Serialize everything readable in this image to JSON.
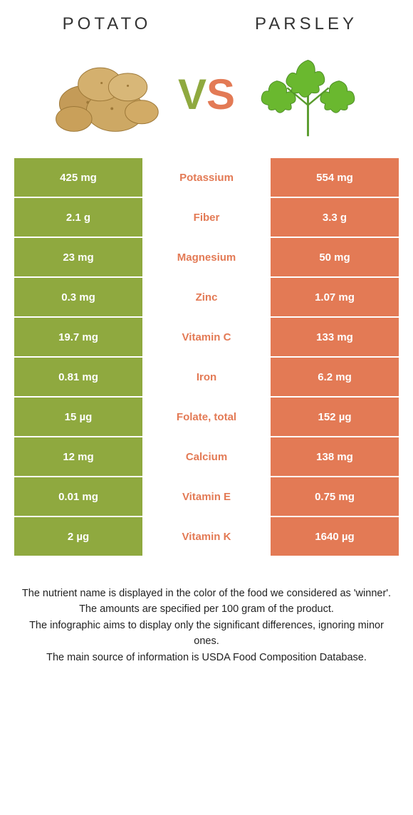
{
  "colors": {
    "left": "#8fa93f",
    "right": "#e37a55",
    "vs_v": "#8fa93f",
    "vs_s": "#e37a55",
    "mid_bg": "#ffffff",
    "mid_text_default": "#e37a55",
    "row_border": "#ffffff"
  },
  "fonts": {
    "title_size": 24,
    "title_spacing": 5,
    "cell_size": 15,
    "vs_size": 60,
    "footer_size": 14.5
  },
  "header": {
    "left": "Potato",
    "right": "Parsley"
  },
  "vs": {
    "v": "V",
    "s": "S"
  },
  "rows": [
    {
      "left": "425 mg",
      "label": "Potassium",
      "right": "554 mg",
      "winner": "right"
    },
    {
      "left": "2.1 g",
      "label": "Fiber",
      "right": "3.3 g",
      "winner": "right"
    },
    {
      "left": "23 mg",
      "label": "Magnesium",
      "right": "50 mg",
      "winner": "right"
    },
    {
      "left": "0.3 mg",
      "label": "Zinc",
      "right": "1.07 mg",
      "winner": "right"
    },
    {
      "left": "19.7 mg",
      "label": "Vitamin C",
      "right": "133 mg",
      "winner": "right"
    },
    {
      "left": "0.81 mg",
      "label": "Iron",
      "right": "6.2 mg",
      "winner": "right"
    },
    {
      "left": "15 µg",
      "label": "Folate, total",
      "right": "152 µg",
      "winner": "right"
    },
    {
      "left": "12 mg",
      "label": "Calcium",
      "right": "138 mg",
      "winner": "right"
    },
    {
      "left": "0.01 mg",
      "label": "Vitamin E",
      "right": "0.75 mg",
      "winner": "right"
    },
    {
      "left": "2 µg",
      "label": "Vitamin K",
      "right": "1640 µg",
      "winner": "right"
    }
  ],
  "footer": {
    "lines": [
      "The nutrient name is displayed in the color of the food we considered as 'winner'.",
      "The amounts are specified per 100 gram of the product.",
      "The infographic aims to display only the significant differences, ignoring minor ones.",
      "The main source of information is USDA Food Composition Database."
    ]
  }
}
